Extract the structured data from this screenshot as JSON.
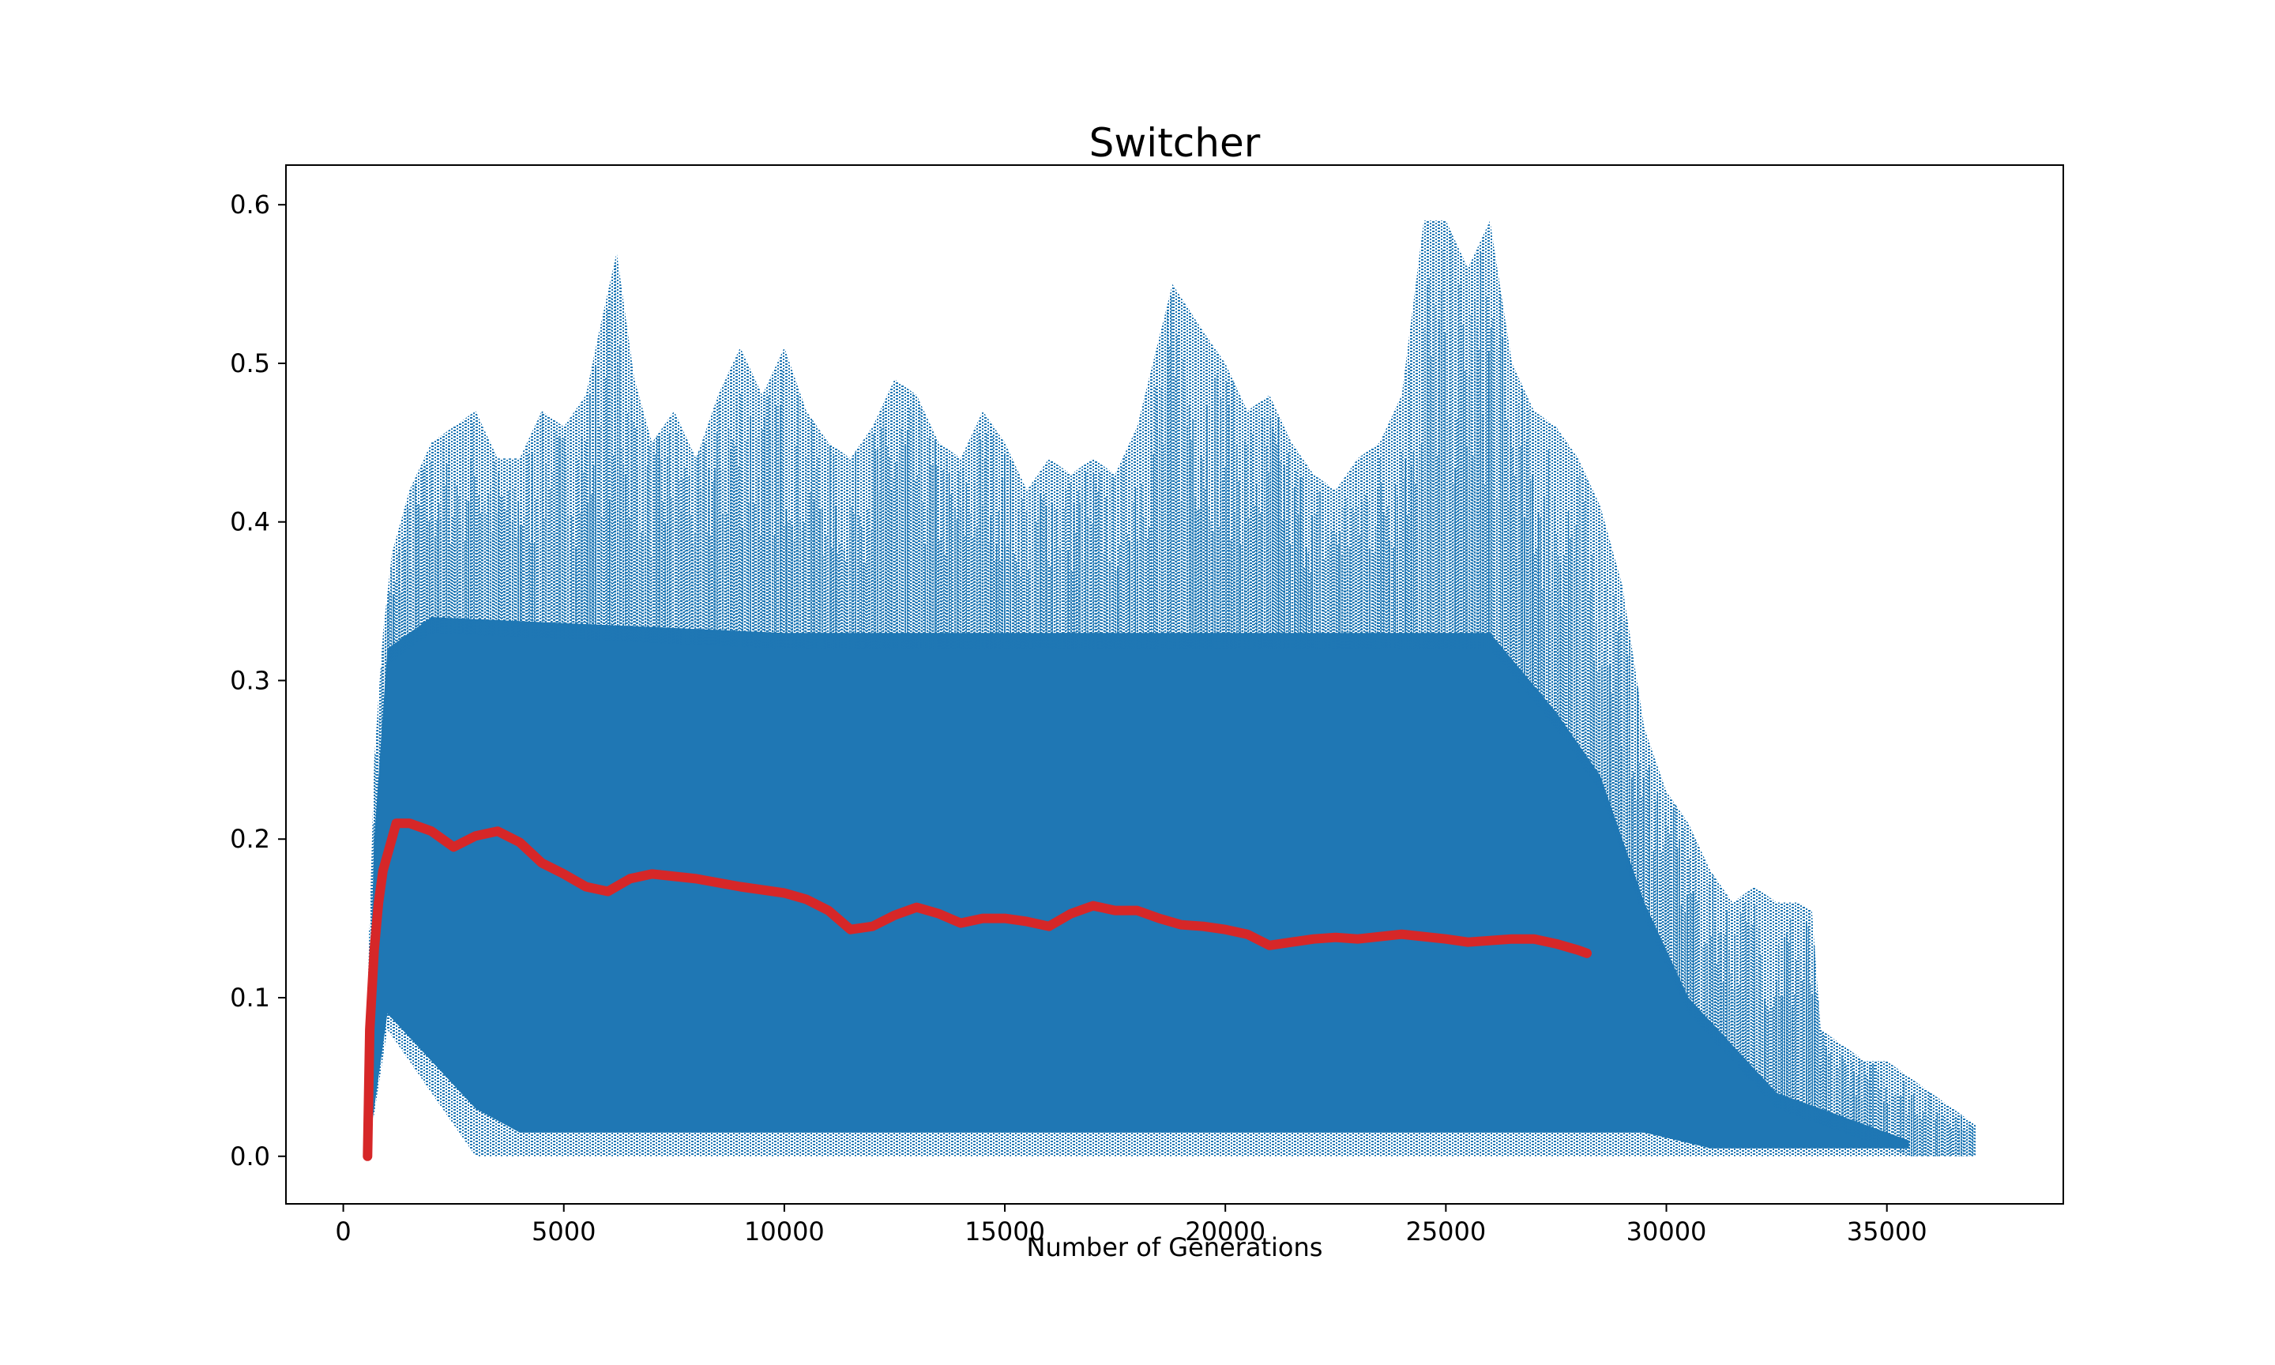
{
  "chart_data": {
    "type": "scatter",
    "title": "Switcher",
    "xlabel": "Number of Generations",
    "ylabel": "",
    "xlim": [
      -1300,
      39000
    ],
    "ylim": [
      -0.03,
      0.625
    ],
    "x_ticks": [
      0,
      5000,
      10000,
      15000,
      20000,
      25000,
      30000,
      35000
    ],
    "x_tick_labels": [
      "0",
      "5000",
      "10000",
      "15000",
      "20000",
      "25000",
      "30000",
      "35000"
    ],
    "y_ticks": [
      0.0,
      0.1,
      0.2,
      0.3,
      0.4,
      0.5,
      0.6
    ],
    "y_tick_labels": [
      "0.0",
      "0.1",
      "0.2",
      "0.3",
      "0.4",
      "0.5",
      "0.6"
    ],
    "grid": false,
    "legend": "none",
    "colors": {
      "scatter": "#1f77b4",
      "mean_line": "#d62728"
    },
    "series": [
      {
        "kind": "scatter_envelope",
        "color": "#1f77b4",
        "upper": [
          [
            550,
            0.1
          ],
          [
            700,
            0.25
          ],
          [
            900,
            0.33
          ],
          [
            1100,
            0.38
          ],
          [
            1500,
            0.42
          ],
          [
            2000,
            0.45
          ],
          [
            2500,
            0.46
          ],
          [
            3000,
            0.47
          ],
          [
            3500,
            0.44
          ],
          [
            4000,
            0.44
          ],
          [
            4500,
            0.47
          ],
          [
            5000,
            0.46
          ],
          [
            5500,
            0.48
          ],
          [
            5800,
            0.52
          ],
          [
            6200,
            0.57
          ],
          [
            6600,
            0.49
          ],
          [
            7000,
            0.45
          ],
          [
            7500,
            0.47
          ],
          [
            8000,
            0.44
          ],
          [
            8500,
            0.48
          ],
          [
            9000,
            0.51
          ],
          [
            9500,
            0.48
          ],
          [
            10000,
            0.51
          ],
          [
            10500,
            0.47
          ],
          [
            11000,
            0.45
          ],
          [
            11500,
            0.44
          ],
          [
            12000,
            0.46
          ],
          [
            12500,
            0.49
          ],
          [
            13000,
            0.48
          ],
          [
            13500,
            0.45
          ],
          [
            14000,
            0.44
          ],
          [
            14500,
            0.47
          ],
          [
            15000,
            0.45
          ],
          [
            15500,
            0.42
          ],
          [
            16000,
            0.44
          ],
          [
            16500,
            0.43
          ],
          [
            17000,
            0.44
          ],
          [
            17500,
            0.43
          ],
          [
            18000,
            0.46
          ],
          [
            18800,
            0.55
          ],
          [
            19500,
            0.52
          ],
          [
            20000,
            0.5
          ],
          [
            20500,
            0.47
          ],
          [
            21000,
            0.48
          ],
          [
            21500,
            0.45
          ],
          [
            22000,
            0.43
          ],
          [
            22500,
            0.42
          ],
          [
            23000,
            0.44
          ],
          [
            23500,
            0.45
          ],
          [
            24000,
            0.48
          ],
          [
            24500,
            0.59
          ],
          [
            25000,
            0.59
          ],
          [
            25500,
            0.56
          ],
          [
            26000,
            0.59
          ],
          [
            26500,
            0.5
          ],
          [
            27000,
            0.47
          ],
          [
            27500,
            0.46
          ],
          [
            28000,
            0.44
          ],
          [
            28500,
            0.41
          ],
          [
            29000,
            0.36
          ],
          [
            29500,
            0.27
          ],
          [
            30000,
            0.23
          ],
          [
            30500,
            0.21
          ],
          [
            31000,
            0.18
          ],
          [
            31500,
            0.16
          ],
          [
            32000,
            0.17
          ],
          [
            32500,
            0.16
          ],
          [
            33000,
            0.16
          ],
          [
            33300,
            0.155
          ],
          [
            33500,
            0.08
          ],
          [
            34000,
            0.07
          ],
          [
            34500,
            0.06
          ],
          [
            35000,
            0.06
          ],
          [
            35500,
            0.05
          ],
          [
            36000,
            0.04
          ],
          [
            36500,
            0.03
          ],
          [
            37000,
            0.02
          ]
        ],
        "lower": [
          [
            550,
            0.0
          ],
          [
            1000,
            0.08
          ],
          [
            1500,
            0.06
          ],
          [
            2000,
            0.04
          ],
          [
            2500,
            0.02
          ],
          [
            3000,
            0.0
          ],
          [
            37000,
            0.0
          ]
        ],
        "dense_upper": [
          [
            550,
            0.05
          ],
          [
            700,
            0.2
          ],
          [
            1000,
            0.32
          ],
          [
            2000,
            0.34
          ],
          [
            10000,
            0.33
          ],
          [
            20000,
            0.33
          ],
          [
            26000,
            0.33
          ],
          [
            27500,
            0.28
          ],
          [
            28500,
            0.24
          ],
          [
            29500,
            0.16
          ],
          [
            30500,
            0.1
          ],
          [
            31500,
            0.07
          ],
          [
            32500,
            0.04
          ],
          [
            33500,
            0.03
          ],
          [
            34500,
            0.02
          ],
          [
            35500,
            0.01
          ]
        ],
        "dense_lower": [
          [
            550,
            0.0
          ],
          [
            1000,
            0.09
          ],
          [
            2000,
            0.06
          ],
          [
            3000,
            0.03
          ],
          [
            4000,
            0.015
          ],
          [
            29500,
            0.015
          ],
          [
            31000,
            0.005
          ],
          [
            35500,
            0.005
          ]
        ]
      },
      {
        "kind": "line",
        "color": "#d62728",
        "points": [
          [
            550,
            0.0
          ],
          [
            600,
            0.08
          ],
          [
            700,
            0.13
          ],
          [
            800,
            0.16
          ],
          [
            900,
            0.18
          ],
          [
            1000,
            0.19
          ],
          [
            1200,
            0.21
          ],
          [
            1500,
            0.21
          ],
          [
            2000,
            0.205
          ],
          [
            2500,
            0.195
          ],
          [
            3000,
            0.202
          ],
          [
            3500,
            0.205
          ],
          [
            4000,
            0.198
          ],
          [
            4500,
            0.185
          ],
          [
            5000,
            0.178
          ],
          [
            5500,
            0.17
          ],
          [
            6000,
            0.167
          ],
          [
            6500,
            0.175
          ],
          [
            7000,
            0.178
          ],
          [
            8000,
            0.175
          ],
          [
            9000,
            0.17
          ],
          [
            10000,
            0.166
          ],
          [
            10500,
            0.162
          ],
          [
            11000,
            0.155
          ],
          [
            11500,
            0.143
          ],
          [
            12000,
            0.145
          ],
          [
            12500,
            0.152
          ],
          [
            13000,
            0.157
          ],
          [
            13500,
            0.153
          ],
          [
            14000,
            0.147
          ],
          [
            14500,
            0.15
          ],
          [
            15000,
            0.15
          ],
          [
            15500,
            0.148
          ],
          [
            16000,
            0.145
          ],
          [
            16500,
            0.153
          ],
          [
            17000,
            0.158
          ],
          [
            17500,
            0.155
          ],
          [
            18000,
            0.155
          ],
          [
            18500,
            0.15
          ],
          [
            19000,
            0.146
          ],
          [
            19500,
            0.145
          ],
          [
            20000,
            0.143
          ],
          [
            20500,
            0.14
          ],
          [
            21000,
            0.133
          ],
          [
            21500,
            0.135
          ],
          [
            22000,
            0.137
          ],
          [
            22500,
            0.138
          ],
          [
            23000,
            0.137
          ],
          [
            24000,
            0.14
          ],
          [
            25000,
            0.137
          ],
          [
            25500,
            0.135
          ],
          [
            26000,
            0.136
          ],
          [
            26500,
            0.137
          ],
          [
            27000,
            0.137
          ],
          [
            27500,
            0.134
          ],
          [
            28000,
            0.13
          ],
          [
            28200,
            0.128
          ]
        ]
      }
    ]
  }
}
